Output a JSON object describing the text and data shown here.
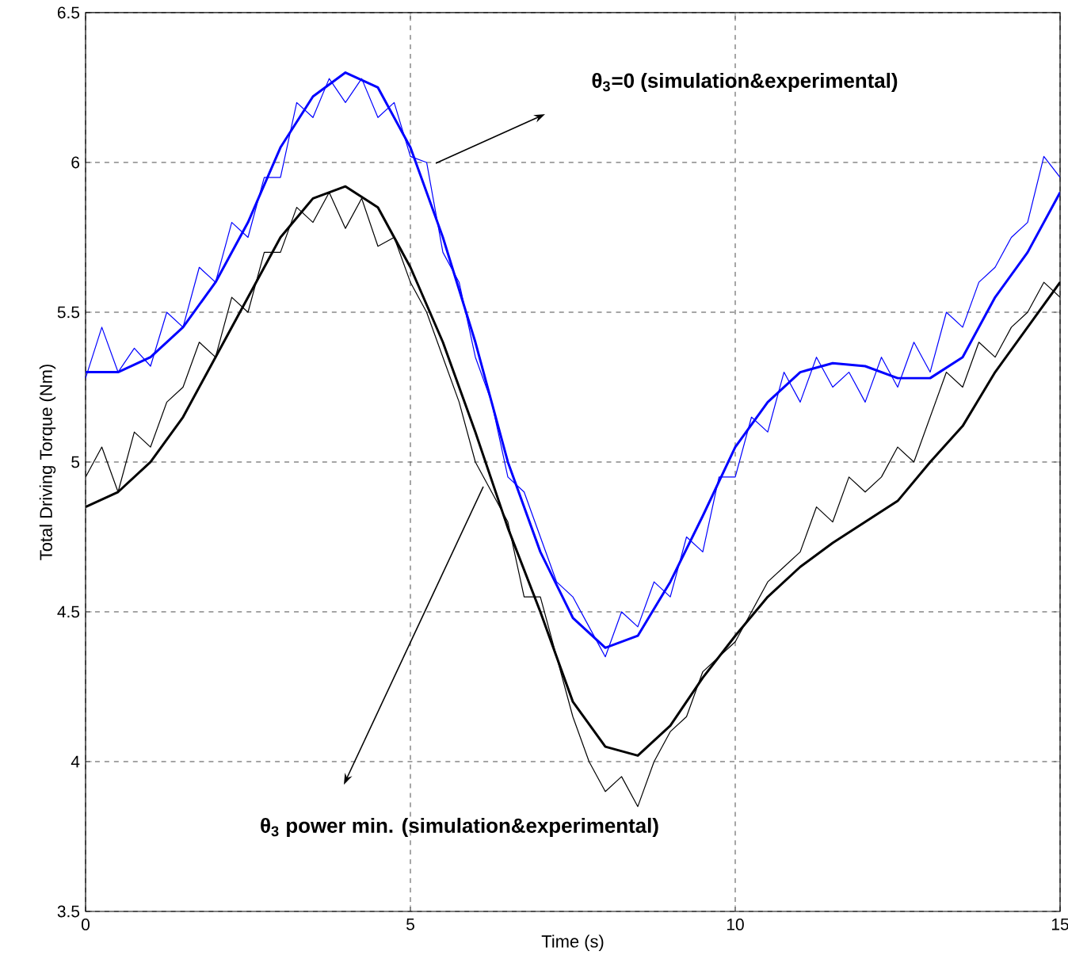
{
  "chart_data": {
    "type": "line",
    "xlabel": "Time (s)",
    "ylabel": "Total Driving Torque (Nm)",
    "xlim": [
      0,
      15
    ],
    "xticks": [
      0,
      5,
      10,
      15
    ],
    "ylim": [
      3.5,
      6.5
    ],
    "yticks": [
      3.5,
      4,
      4.5,
      5,
      5.5,
      6,
      6.5
    ],
    "grid": true,
    "line_style": "solid",
    "marker": "none",
    "annotations": [
      "**θ$_{3}$=0 (simulation&experimental)**",
      "**θ$_{3}$ power min. (simulation&experimental)**"
    ],
    "series": [
      {
        "color": "#0000ff",
        "x": [
          0,
          0.25,
          0.5,
          0.75,
          1,
          1.25,
          1.5,
          1.75,
          2,
          2.25,
          2.5,
          2.75,
          3,
          3.25,
          3.5,
          3.75,
          4,
          4.25,
          4.5,
          4.75,
          5,
          5.25,
          5.5,
          5.75,
          6,
          6.25,
          6.5,
          6.75,
          7,
          7.25,
          7.5,
          7.75,
          8,
          8.25,
          8.5,
          8.75,
          9,
          9.25,
          9.5,
          9.75,
          10,
          10.25,
          10.5,
          10.75,
          11,
          11.25,
          11.5,
          11.75,
          12,
          12.25,
          12.5,
          12.75,
          13,
          13.25,
          13.5,
          13.75,
          14,
          14.25,
          14.5,
          14.75,
          15
        ],
        "values": [
          5.28,
          5.45,
          5.3,
          5.38,
          5.32,
          5.5,
          5.45,
          5.65,
          5.6,
          5.8,
          5.75,
          5.95,
          5.95,
          6.2,
          6.15,
          6.28,
          6.2,
          6.28,
          6.15,
          6.2,
          6.02,
          6.0,
          5.7,
          5.6,
          5.35,
          5.2,
          4.95,
          4.9,
          4.75,
          4.6,
          4.55,
          4.45,
          4.35,
          4.5,
          4.45,
          4.6,
          4.55,
          4.75,
          4.7,
          4.95,
          4.95,
          5.15,
          5.1,
          5.3,
          5.2,
          5.35,
          5.25,
          5.3,
          5.2,
          5.35,
          5.25,
          5.4,
          5.3,
          5.5,
          5.45,
          5.6,
          5.65,
          5.75,
          5.8,
          6.02,
          5.95
        ]
      },
      {
        "color": "#000000",
        "x": [
          0,
          0.25,
          0.5,
          0.75,
          1,
          1.25,
          1.5,
          1.75,
          2,
          2.25,
          2.5,
          2.75,
          3,
          3.25,
          3.5,
          3.75,
          4,
          4.25,
          4.5,
          4.75,
          5,
          5.25,
          5.5,
          5.75,
          6,
          6.25,
          6.5,
          6.75,
          7,
          7.25,
          7.5,
          7.75,
          8,
          8.25,
          8.5,
          8.75,
          9,
          9.25,
          9.5,
          9.75,
          10,
          10.25,
          10.5,
          10.75,
          11,
          11.25,
          11.5,
          11.75,
          12,
          12.25,
          12.5,
          12.75,
          13,
          13.25,
          13.5,
          13.75,
          14,
          14.25,
          14.5,
          14.75,
          15
        ],
        "values": [
          4.95,
          5.05,
          4.9,
          5.1,
          5.05,
          5.2,
          5.25,
          5.4,
          5.35,
          5.55,
          5.5,
          5.7,
          5.7,
          5.85,
          5.8,
          5.9,
          5.78,
          5.88,
          5.72,
          5.75,
          5.6,
          5.5,
          5.35,
          5.2,
          5.0,
          4.9,
          4.8,
          4.55,
          4.55,
          4.35,
          4.15,
          4.0,
          3.9,
          3.95,
          3.85,
          4.0,
          4.1,
          4.15,
          4.3,
          4.35,
          4.4,
          4.5,
          4.6,
          4.65,
          4.7,
          4.85,
          4.8,
          4.95,
          4.9,
          4.95,
          5.05,
          5.0,
          5.15,
          5.3,
          5.25,
          5.4,
          5.35,
          5.45,
          5.5,
          5.6,
          5.55
        ]
      },
      {
        "color": "#0000ff",
        "x": [
          0,
          0.5,
          1,
          1.5,
          2,
          2.5,
          3,
          3.5,
          4,
          4.5,
          5,
          5.5,
          6,
          6.5,
          7,
          7.5,
          8,
          8.5,
          9,
          9.5,
          10,
          10.5,
          11,
          11.5,
          12,
          12.5,
          13,
          13.5,
          14,
          14.5,
          15
        ],
        "values": [
          5.3,
          5.3,
          5.35,
          5.45,
          5.6,
          5.8,
          6.05,
          6.22,
          6.3,
          6.25,
          6.05,
          5.75,
          5.4,
          5.0,
          4.7,
          4.48,
          4.38,
          4.42,
          4.6,
          4.82,
          5.05,
          5.2,
          5.3,
          5.33,
          5.32,
          5.28,
          5.28,
          5.35,
          5.55,
          5.7,
          5.9
        ]
      },
      {
        "color": "#000000",
        "x": [
          0,
          0.5,
          1,
          1.5,
          2,
          2.5,
          3,
          3.5,
          4,
          4.5,
          5,
          5.5,
          6,
          6.5,
          7,
          7.5,
          8,
          8.5,
          9,
          9.5,
          10,
          10.5,
          11,
          11.5,
          12,
          12.5,
          13,
          13.5,
          14,
          14.5,
          15
        ],
        "values": [
          4.85,
          4.9,
          5.0,
          5.15,
          5.35,
          5.55,
          5.75,
          5.88,
          5.92,
          5.85,
          5.65,
          5.4,
          5.1,
          4.78,
          4.5,
          4.2,
          4.05,
          4.02,
          4.12,
          4.28,
          4.42,
          4.55,
          4.65,
          4.73,
          4.8,
          4.87,
          5.0,
          5.12,
          5.3,
          5.45,
          5.6
        ]
      }
    ]
  }
}
